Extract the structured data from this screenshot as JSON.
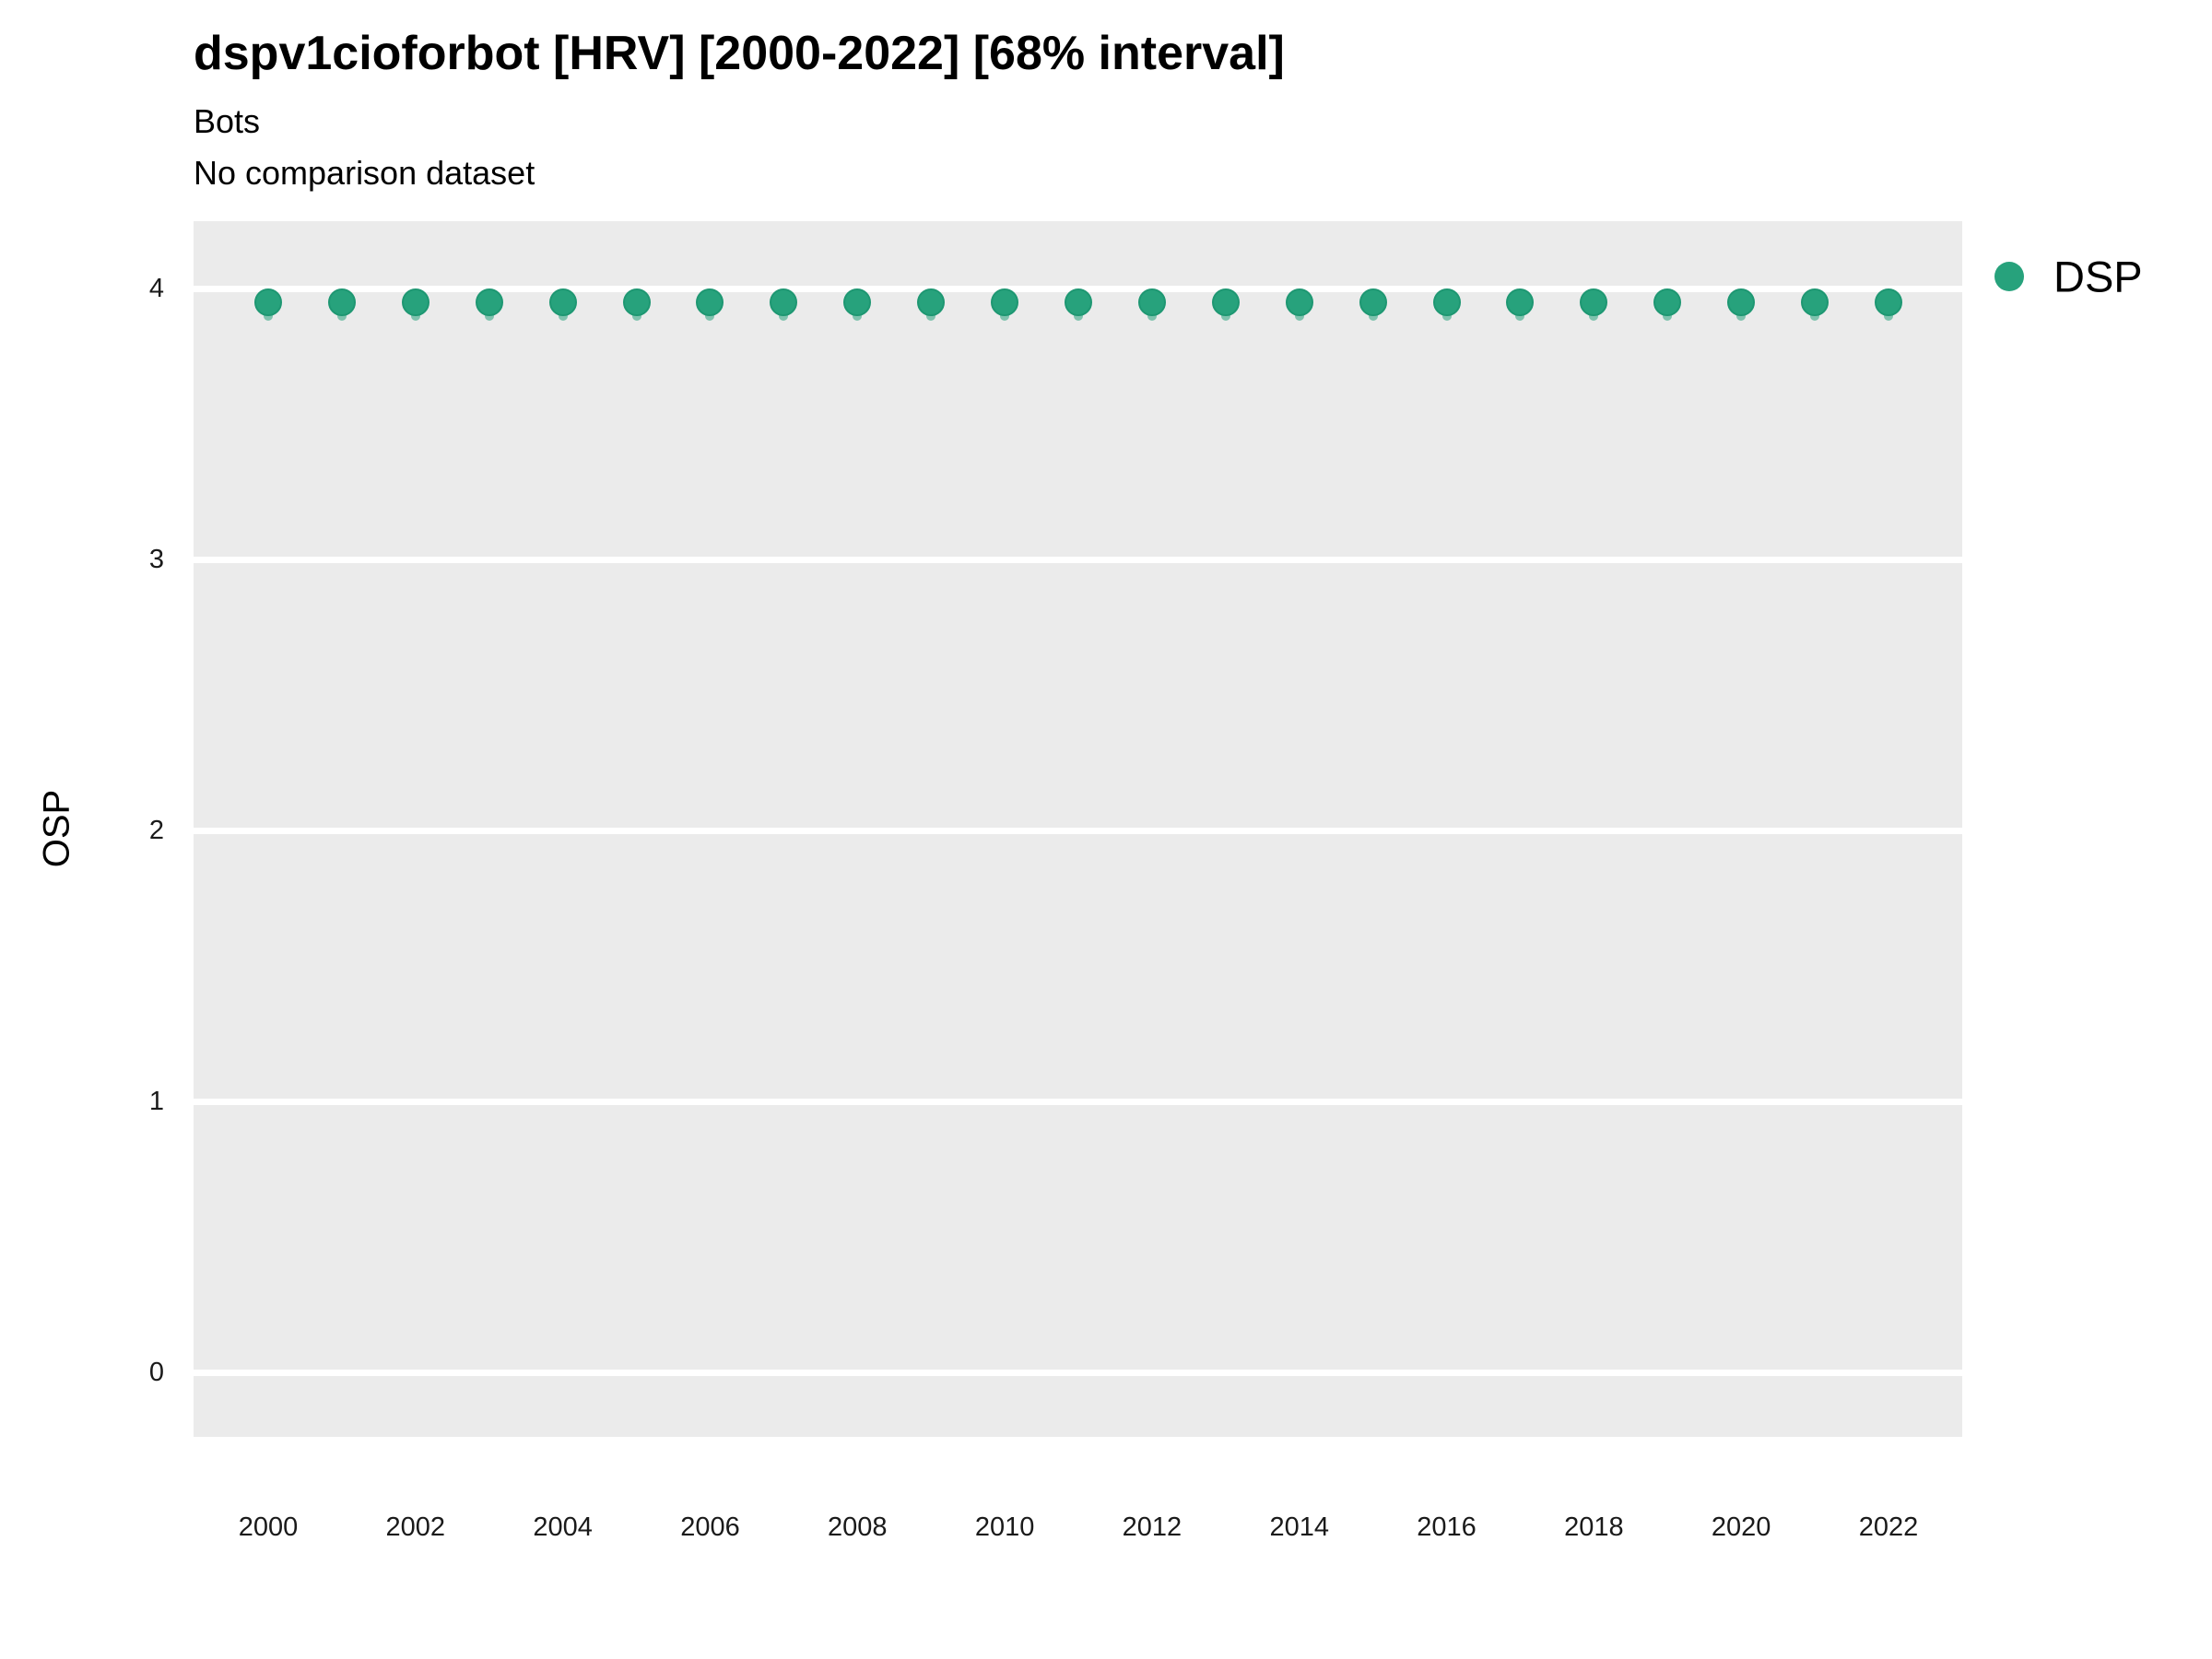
{
  "header": {
    "title": "dspv1cioforbot [HRV] [2000-2022] [68% interval]",
    "subtitle": "Bots",
    "comparison_note": "No comparison dataset"
  },
  "legend": {
    "label": "DSP",
    "marker_color": "#27A27C"
  },
  "axes": {
    "y_label": "OSP",
    "y_ticks": [
      4,
      3,
      2,
      1,
      0
    ],
    "x_ticks": [
      2000,
      2002,
      2004,
      2006,
      2008,
      2010,
      2012,
      2014,
      2016,
      2018,
      2020,
      2022
    ]
  },
  "colors": {
    "point_fill": "#27A27C",
    "point_edge": "#1E9772",
    "interval": "rgba(39,162,124,0.55)",
    "panel_background": "#EBEBEB",
    "gridline": "#FFFFFF"
  },
  "chart_data": {
    "type": "scatter",
    "title": "dspv1cioforbot [HRV] [2000-2022] [68% interval]",
    "subtitle": "Bots",
    "note": "No comparison dataset",
    "xlabel": "",
    "ylabel": "OSP",
    "xlim": [
      1999,
      2023
    ],
    "ylim": [
      -0.24,
      4.25
    ],
    "grid": "horizontal-only",
    "legend_position": "right-top",
    "x": [
      2000,
      2001,
      2002,
      2003,
      2004,
      2005,
      2006,
      2007,
      2008,
      2009,
      2010,
      2011,
      2012,
      2013,
      2014,
      2015,
      2016,
      2017,
      2018,
      2019,
      2020,
      2021,
      2022
    ],
    "series": [
      {
        "name": "DSP",
        "marker": "point-with-68pct-interval",
        "color": "#27A27C",
        "values": [
          3.95,
          3.95,
          3.95,
          3.95,
          3.95,
          3.95,
          3.95,
          3.95,
          3.95,
          3.95,
          3.95,
          3.95,
          3.95,
          3.95,
          3.95,
          3.95,
          3.95,
          3.95,
          3.95,
          3.95,
          3.95,
          3.95,
          3.95
        ],
        "interval_low": [
          3.88,
          3.88,
          3.88,
          3.88,
          3.88,
          3.88,
          3.88,
          3.88,
          3.88,
          3.88,
          3.88,
          3.88,
          3.88,
          3.88,
          3.88,
          3.88,
          3.88,
          3.88,
          3.88,
          3.88,
          3.88,
          3.88,
          3.88
        ],
        "interval_high": [
          3.98,
          3.98,
          3.98,
          3.98,
          3.98,
          3.98,
          3.98,
          3.98,
          3.98,
          3.98,
          3.98,
          3.98,
          3.98,
          3.98,
          3.98,
          3.98,
          3.98,
          3.98,
          3.98,
          3.98,
          3.98,
          3.98,
          3.98
        ]
      }
    ]
  }
}
